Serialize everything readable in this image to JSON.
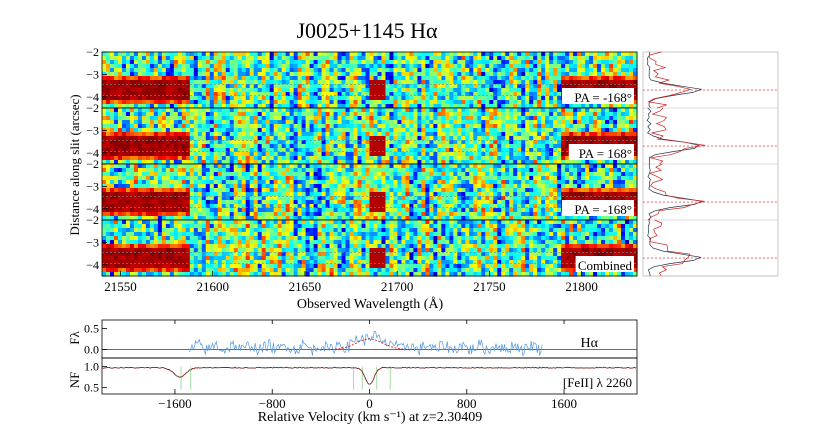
{
  "chart_data": [
    {
      "type": "heatmap",
      "title": "J0025+1145 Hα",
      "xlabel": "Observed Wavelength (Å)",
      "ylabel": "Distance along slit (arcsec)",
      "xlim": [
        21540,
        21830
      ],
      "xticks": [
        21550,
        21600,
        21650,
        21700,
        21750,
        21800
      ],
      "colormap": "jet",
      "panels": [
        {
          "label": "PA = -168°",
          "ylim": [
            -4.5,
            -2
          ],
          "yticks": [
            -2,
            -3,
            -4
          ],
          "trace_center": -3.7
        },
        {
          "label": "PA = 168°",
          "ylim": [
            -4.5,
            -2
          ],
          "yticks": [
            -2,
            -3,
            -4
          ],
          "trace_center": -3.7
        },
        {
          "label": "PA = -168°",
          "ylim": [
            -4.5,
            -2
          ],
          "yticks": [
            -2,
            -3,
            -4
          ],
          "trace_center": -3.7
        },
        {
          "label": "Combined",
          "ylim": [
            -4.5,
            -2
          ],
          "yticks": [
            -2,
            -3,
            -4
          ],
          "trace_center": -3.7
        }
      ],
      "continuum_ranges": [
        [
          21540,
          21588
        ],
        [
          21788,
          21830
        ]
      ],
      "emission_feature_x": 21690
    },
    {
      "type": "line",
      "xlim": [
        -2200,
        2200
      ],
      "xticks": [
        -1600,
        -800,
        0,
        800,
        1600
      ],
      "xlabel": "Relative Velocity (km s⁻¹) at z=2.30409",
      "upper_panel": {
        "ylabel": "Fλ",
        "yticks": [
          0.0,
          0.5
        ],
        "ylim": [
          -0.2,
          0.7
        ],
        "label": "Hα",
        "model_gaussian": {
          "center": 0,
          "sigma": 110,
          "amplitude": 0.25
        },
        "series_color": "#5599dd",
        "model_color": "#cc2222",
        "data_start_x": -1480,
        "data_end_x": 1420
      },
      "lower_panel": {
        "ylabel": "NF",
        "yticks": [
          0.5,
          1.0
        ],
        "ylim": [
          0.35,
          1.2
        ],
        "label": "[FeII] λ 2260",
        "absorption_features": [
          {
            "center": -1560,
            "depth": 0.22,
            "width": 70
          },
          {
            "center": 0,
            "depth": 0.4,
            "width": 50
          }
        ]
      }
    }
  ]
}
